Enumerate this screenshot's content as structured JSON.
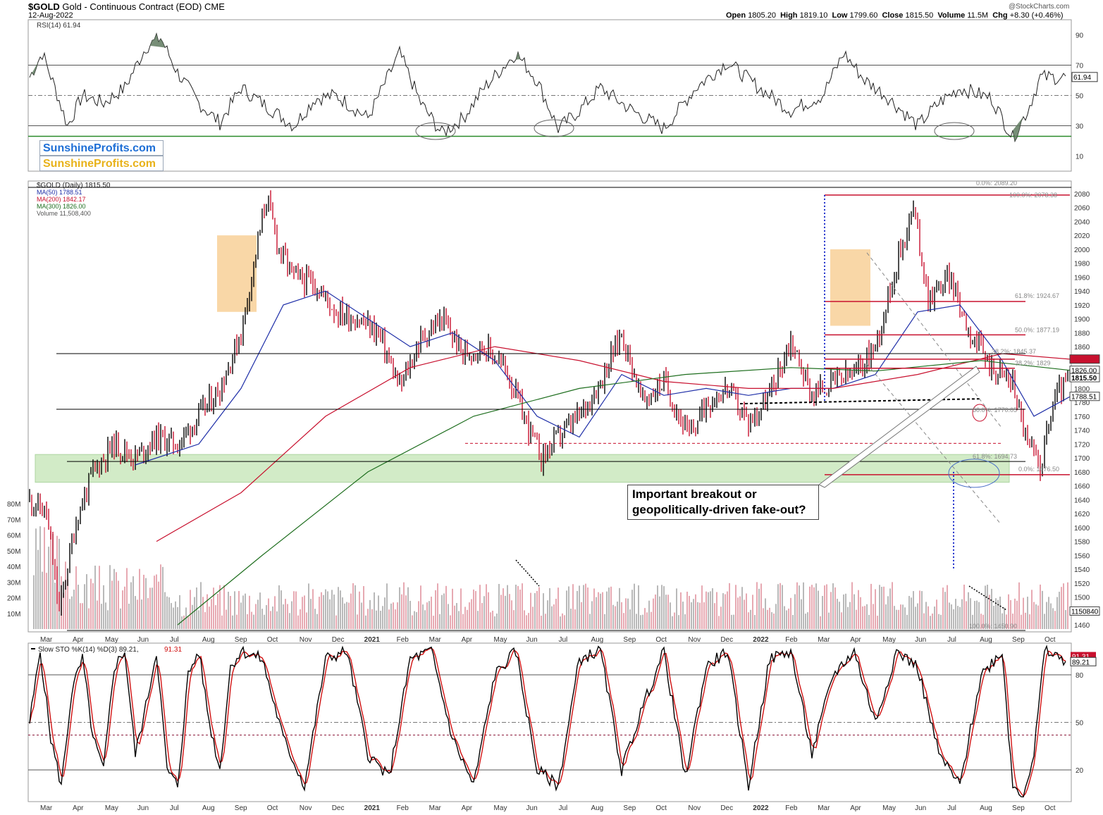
{
  "header": {
    "symbol": "$GOLD",
    "description": "Gold - Continuous Contract (EOD)",
    "exchange": "CME",
    "date": "12-Aug-2022",
    "copyright": "@StockCharts.com",
    "ohlc": {
      "open_label": "Open",
      "open": "1805.20",
      "high_label": "High",
      "high": "1819.10",
      "low_label": "Low",
      "low": "1799.60",
      "close_label": "Close",
      "close": "1815.50",
      "volume_label": "Volume",
      "volume": "11.5M",
      "chg_label": "Chg",
      "chg": "+8.30 (+0.46%)"
    }
  },
  "brand": {
    "line1": "SunshineProfits.com",
    "line2": "SunshineProfits.com",
    "color1": "#1e6fd6",
    "color2": "#e8b21a"
  },
  "annotation": {
    "line1": "Important breakout or",
    "line2": "geopolitically-driven fake-out?"
  },
  "colors": {
    "price_up": "#000000",
    "price_down": "#c8102e",
    "ma50": "#1f2fa8",
    "ma200": "#c8102e",
    "ma300": "#1e6e1e",
    "support_zone": "#bfe3b0",
    "consolidation_zone": "#f7c98a",
    "rsi_fill": "#5f7a5f",
    "sto_k": "#000000",
    "sto_d": "#d01010"
  },
  "x_axis": {
    "labels": [
      "Mar",
      "Apr",
      "May",
      "Jun",
      "Jul",
      "Aug",
      "Sep",
      "Oct",
      "Nov",
      "Dec",
      "2021",
      "Feb",
      "Mar",
      "Apr",
      "May",
      "Jun",
      "Jul",
      "Aug",
      "Sep",
      "Oct",
      "Nov",
      "Dec",
      "2022",
      "Feb",
      "Mar",
      "Apr",
      "May",
      "Jun",
      "Jul",
      "Aug",
      "Sep",
      "Oct"
    ]
  },
  "rsi_panel": {
    "legend": "RSI(14) 61.94",
    "current": "61.94",
    "levels": [
      "90",
      "70",
      "50",
      "30",
      "10"
    ]
  },
  "price_panel": {
    "legend_main": "$GOLD (Daily) 1815.50",
    "legend_ma50": "MA(50) 1788.51",
    "legend_ma200": "MA(200) 1842.17",
    "legend_ma300": "MA(300) 1826.00",
    "legend_volume": "Volume 11,508,400",
    "price_ticks": [
      "2080",
      "2060",
      "2040",
      "2020",
      "2000",
      "1980",
      "1960",
      "1940",
      "1920",
      "1900",
      "1880",
      "1860",
      "1840",
      "1820",
      "1800",
      "1780",
      "1760",
      "1740",
      "1720",
      "1700",
      "1680",
      "1660",
      "1640",
      "1620",
      "1600",
      "1580",
      "1560",
      "1540",
      "1520",
      "1500",
      "1480",
      "1460"
    ],
    "volume_ticks": [
      "80M",
      "70M",
      "60M",
      "50M",
      "40M",
      "30M",
      "20M",
      "10M"
    ],
    "value_tags": [
      "1842.17",
      "1826.00",
      "1815.50",
      "1788.51",
      "1150840"
    ],
    "fib_labels": [
      "0.0%: 2089.20",
      "100.0%: 2078.38",
      "61.8%: 1924.67",
      "50.0%: 1877.19",
      "38.2%: 1845.37",
      "38.2%: 1829",
      "50.0%: 1770.05",
      "61.8%: 1694.73",
      "0.0%: 1676.50",
      "100.0%: 1450.90"
    ]
  },
  "sto_panel": {
    "legend": "Slow STO %K(14) %D(3) 89.21,",
    "legend_d": "91.31",
    "current_k": "89.21",
    "current_d": "91.31",
    "levels": [
      "80",
      "50",
      "20"
    ]
  },
  "chart_data": [
    {
      "type": "line",
      "name_shown": "RSI(14)",
      "ylim": [
        0,
        100
      ],
      "levels": [
        30,
        50,
        70
      ],
      "points": [
        [
          0,
          62
        ],
        [
          6,
          78
        ],
        [
          12,
          55
        ],
        [
          18,
          30
        ],
        [
          25,
          50
        ],
        [
          35,
          45
        ],
        [
          45,
          55
        ],
        [
          55,
          82
        ],
        [
          62,
          88
        ],
        [
          70,
          65
        ],
        [
          80,
          45
        ],
        [
          90,
          32
        ],
        [
          100,
          55
        ],
        [
          115,
          40
        ],
        [
          125,
          30
        ],
        [
          135,
          48
        ],
        [
          145,
          50
        ],
        [
          160,
          35
        ],
        [
          175,
          78
        ],
        [
          185,
          45
        ],
        [
          195,
          25
        ],
        [
          205,
          35
        ],
        [
          215,
          55
        ],
        [
          230,
          78
        ],
        [
          240,
          60
        ],
        [
          250,
          28
        ],
        [
          260,
          40
        ],
        [
          270,
          55
        ],
        [
          285,
          40
        ],
        [
          300,
          28
        ],
        [
          315,
          55
        ],
        [
          330,
          72
        ],
        [
          345,
          55
        ],
        [
          360,
          40
        ],
        [
          375,
          50
        ],
        [
          385,
          78
        ],
        [
          395,
          60
        ],
        [
          405,
          50
        ],
        [
          420,
          30
        ],
        [
          430,
          45
        ],
        [
          440,
          55
        ],
        [
          455,
          48
        ],
        [
          465,
          22
        ],
        [
          472,
          40
        ],
        [
          478,
          62
        ],
        [
          490,
          62
        ]
      ]
    },
    {
      "type": "line",
      "title": "$GOLD (Daily)",
      "y_label": "Price",
      "ylim": [
        1450,
        2090
      ],
      "x_start": "2020-02-24",
      "x_end": "2022-08-12",
      "series_price": [
        [
          0,
          1640
        ],
        [
          8,
          1620
        ],
        [
          14,
          1480
        ],
        [
          22,
          1610
        ],
        [
          30,
          1680
        ],
        [
          40,
          1720
        ],
        [
          50,
          1700
        ],
        [
          60,
          1730
        ],
        [
          70,
          1720
        ],
        [
          80,
          1760
        ],
        [
          90,
          1800
        ],
        [
          100,
          1880
        ],
        [
          112,
          2075
        ],
        [
          118,
          2000
        ],
        [
          125,
          1960
        ],
        [
          135,
          1950
        ],
        [
          145,
          1910
        ],
        [
          155,
          1900
        ],
        [
          165,
          1880
        ],
        [
          175,
          1800
        ],
        [
          185,
          1870
        ],
        [
          195,
          1900
        ],
        [
          205,
          1850
        ],
        [
          215,
          1860
        ],
        [
          225,
          1830
        ],
        [
          235,
          1750
        ],
        [
          242,
          1700
        ],
        [
          250,
          1730
        ],
        [
          260,
          1760
        ],
        [
          270,
          1810
        ],
        [
          280,
          1880
        ],
        [
          290,
          1780
        ],
        [
          300,
          1810
        ],
        [
          312,
          1730
        ],
        [
          320,
          1780
        ],
        [
          330,
          1800
        ],
        [
          340,
          1750
        ],
        [
          350,
          1790
        ],
        [
          360,
          1870
        ],
        [
          370,
          1790
        ],
        [
          380,
          1810
        ],
        [
          390,
          1820
        ],
        [
          400,
          1860
        ],
        [
          410,
          1980
        ],
        [
          418,
          2060
        ],
        [
          425,
          1930
        ],
        [
          435,
          1960
        ],
        [
          445,
          1880
        ],
        [
          455,
          1830
        ],
        [
          465,
          1810
        ],
        [
          472,
          1720
        ],
        [
          478,
          1690
        ],
        [
          485,
          1790
        ],
        [
          492,
          1815
        ]
      ],
      "series_ma50": [
        [
          50,
          1690
        ],
        [
          80,
          1720
        ],
        [
          100,
          1800
        ],
        [
          120,
          1920
        ],
        [
          140,
          1940
        ],
        [
          160,
          1900
        ],
        [
          180,
          1860
        ],
        [
          200,
          1880
        ],
        [
          220,
          1840
        ],
        [
          240,
          1760
        ],
        [
          260,
          1730
        ],
        [
          280,
          1820
        ],
        [
          300,
          1790
        ],
        [
          320,
          1800
        ],
        [
          340,
          1790
        ],
        [
          360,
          1800
        ],
        [
          380,
          1800
        ],
        [
          400,
          1820
        ],
        [
          420,
          1910
        ],
        [
          440,
          1920
        ],
        [
          460,
          1840
        ],
        [
          475,
          1760
        ],
        [
          492,
          1788
        ]
      ],
      "series_ma200": [
        [
          60,
          1580
        ],
        [
          100,
          1650
        ],
        [
          140,
          1760
        ],
        [
          180,
          1830
        ],
        [
          220,
          1860
        ],
        [
          260,
          1840
        ],
        [
          300,
          1810
        ],
        [
          340,
          1800
        ],
        [
          380,
          1800
        ],
        [
          420,
          1820
        ],
        [
          460,
          1850
        ],
        [
          492,
          1842
        ]
      ],
      "series_ma300": [
        [
          70,
          1460
        ],
        [
          110,
          1560
        ],
        [
          160,
          1680
        ],
        [
          210,
          1760
        ],
        [
          260,
          1800
        ],
        [
          310,
          1820
        ],
        [
          360,
          1830
        ],
        [
          400,
          1825
        ],
        [
          450,
          1840
        ],
        [
          492,
          1826
        ]
      ],
      "support_zone": [
        1665,
        1705
      ],
      "volume": {
        "ylim": [
          0,
          90000000
        ],
        "latest": 11508400
      }
    },
    {
      "type": "line",
      "name_shown": "Slow STO %K(14) %D(3)",
      "ylim": [
        0,
        100
      ],
      "levels": [
        20,
        50,
        80
      ],
      "k": [
        [
          0,
          50
        ],
        [
          5,
          95
        ],
        [
          10,
          40
        ],
        [
          15,
          10
        ],
        [
          20,
          70
        ],
        [
          25,
          90
        ],
        [
          30,
          40
        ],
        [
          35,
          20
        ],
        [
          40,
          85
        ],
        [
          45,
          95
        ],
        [
          50,
          30
        ],
        [
          55,
          60
        ],
        [
          60,
          95
        ],
        [
          65,
          20
        ],
        [
          70,
          10
        ],
        [
          75,
          80
        ],
        [
          80,
          95
        ],
        [
          85,
          50
        ],
        [
          90,
          20
        ],
        [
          95,
          85
        ],
        [
          100,
          95
        ],
        [
          110,
          90
        ],
        [
          120,
          40
        ],
        [
          130,
          10
        ],
        [
          140,
          90
        ],
        [
          150,
          95
        ],
        [
          160,
          30
        ],
        [
          170,
          15
        ],
        [
          180,
          90
        ],
        [
          190,
          95
        ],
        [
          200,
          40
        ],
        [
          210,
          10
        ],
        [
          220,
          80
        ],
        [
          230,
          95
        ],
        [
          240,
          20
        ],
        [
          250,
          10
        ],
        [
          260,
          90
        ],
        [
          270,
          95
        ],
        [
          280,
          20
        ],
        [
          290,
          60
        ],
        [
          300,
          95
        ],
        [
          310,
          15
        ],
        [
          320,
          85
        ],
        [
          330,
          95
        ],
        [
          340,
          10
        ],
        [
          350,
          90
        ],
        [
          360,
          95
        ],
        [
          370,
          30
        ],
        [
          380,
          80
        ],
        [
          390,
          95
        ],
        [
          400,
          50
        ],
        [
          410,
          95
        ],
        [
          420,
          85
        ],
        [
          430,
          30
        ],
        [
          440,
          10
        ],
        [
          450,
          80
        ],
        [
          460,
          95
        ],
        [
          465,
          10
        ],
        [
          470,
          5
        ],
        [
          475,
          30
        ],
        [
          480,
          95
        ],
        [
          485,
          92
        ],
        [
          490,
          89
        ]
      ],
      "d_latest": 91.31
    }
  ]
}
